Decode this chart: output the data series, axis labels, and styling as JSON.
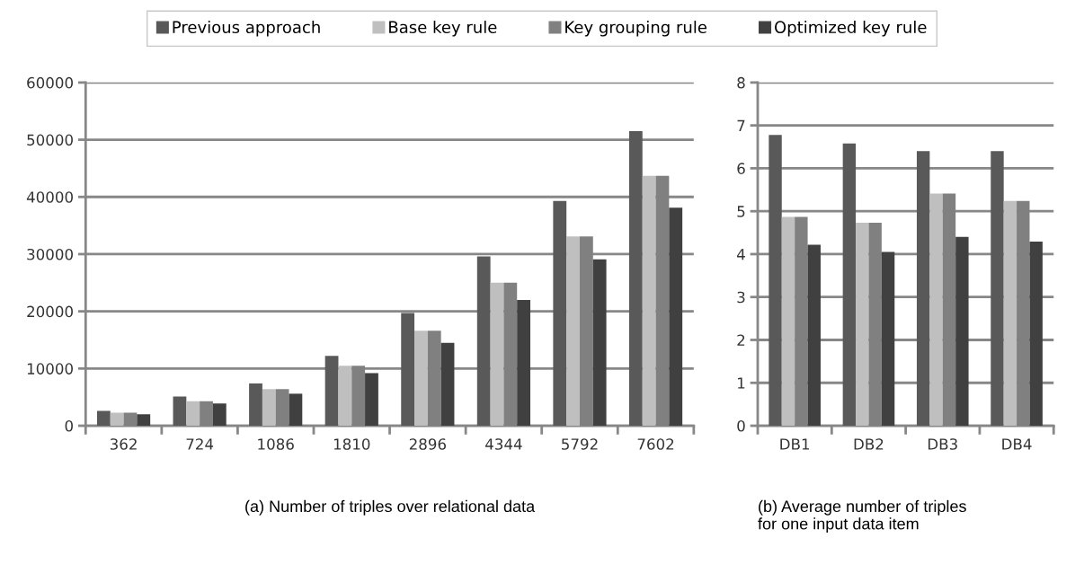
{
  "chart_data": [
    {
      "type": "bar",
      "xlabel": "(a) Number of triples over relational data",
      "categories": [
        "362",
        "724",
        "1086",
        "1810",
        "2896",
        "4344",
        "5792",
        "7602"
      ],
      "ylim": [
        0,
        60000
      ],
      "yticks": [
        0,
        10000,
        20000,
        30000,
        40000,
        50000,
        60000
      ],
      "grid": "y",
      "legend": "top",
      "series": [
        {
          "name": "Previous approach",
          "color": "#595959",
          "values": [
            2600,
            5100,
            7400,
            12200,
            19700,
            29600,
            39300,
            51500
          ]
        },
        {
          "name": "Base key rule",
          "color": "#bfbfbf",
          "values": [
            2300,
            4300,
            6400,
            10500,
            16600,
            25000,
            33100,
            43700
          ]
        },
        {
          "name": "Key grouping rule",
          "color": "#808080",
          "values": [
            2300,
            4300,
            6400,
            10500,
            16600,
            25000,
            33100,
            43700
          ]
        },
        {
          "name": "Optimized key rule",
          "color": "#404040",
          "values": [
            2000,
            3900,
            5600,
            9200,
            14500,
            22000,
            29100,
            38100
          ]
        }
      ]
    },
    {
      "type": "bar",
      "xlabel": "(b) Average number of triples\nfor one input data item",
      "categories": [
        "DB1",
        "DB2",
        "DB3",
        "DB4"
      ],
      "ylim": [
        0,
        8
      ],
      "yticks": [
        0,
        1,
        2,
        3,
        4,
        5,
        6,
        7,
        8
      ],
      "grid": "y",
      "series": [
        {
          "color": "#595959",
          "values": [
            6.78,
            6.58,
            6.4,
            6.4
          ]
        },
        {
          "color": "#bfbfbf",
          "values": [
            4.87,
            4.73,
            5.41,
            5.24
          ]
        },
        {
          "color": "#808080",
          "values": [
            4.87,
            4.73,
            5.41,
            5.24
          ]
        },
        {
          "color": "#404040",
          "values": [
            4.22,
            4.05,
            4.4,
            4.29
          ]
        }
      ]
    }
  ]
}
